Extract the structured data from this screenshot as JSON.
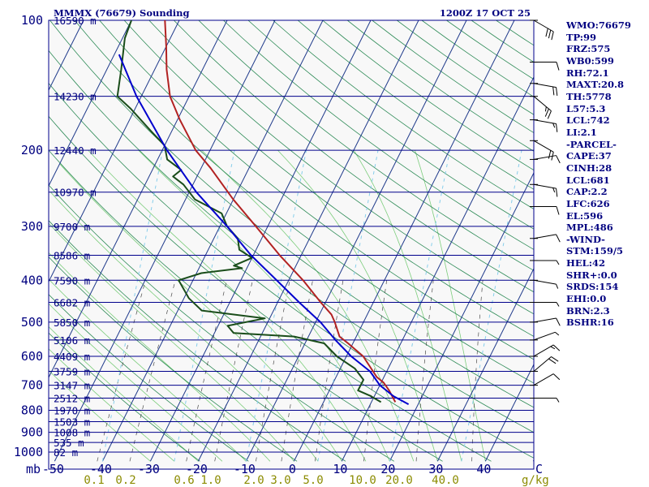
{
  "header": {
    "title": "MMMX (76679) Sounding",
    "datetime": "1200Z 17 OCT 25"
  },
  "colors": {
    "background": "#f8f8f8",
    "isobar": "#00008b",
    "dry_adiabat": "#2e8b57",
    "moist_adiabat": "#7ccd7c",
    "mixing_ratio": "#4a4a4a",
    "isotherm": "#1e3a8a",
    "temperature": "#b22222",
    "dewpoint": "#1a4d1a",
    "parcel": "#0000cd",
    "wet_bulb_line": "#87ceeb",
    "temp_ticks": "#000080",
    "mixing_ratio_ticks": "#8b8b00",
    "stats_text": "#000080"
  },
  "stats": [
    "WMO:76679",
    "TP:99",
    "FRZ:575",
    "WB0:599",
    "RH:72.1",
    "MAXT:20.8",
    "TH:5778",
    "L57:5.3",
    "LCL:742",
    "LI:2.1",
    "-PARCEL-",
    "CAPE:37",
    "CINH:28",
    "LCL:681",
    "CAP:2.2",
    "LFC:626",
    "EL:596",
    "MPL:486",
    "-WIND-",
    "STM:159/5",
    "HEL:42",
    "SHR+:0.0",
    "SRDS:154",
    "EHI:0.0",
    "BRN:2.3",
    "BSHR:16"
  ],
  "chart_data": {
    "type": "line",
    "diagram": "skew-T log-P",
    "pressure_unit": "mb",
    "x_unit": "C",
    "x_ticks": [
      -50,
      -40,
      -30,
      -20,
      -10,
      0,
      10,
      20,
      30,
      40
    ],
    "x_tick_labels": [
      "-50",
      "-40",
      "-30",
      "-20",
      "-10",
      "0",
      "10",
      "20",
      "30",
      "40"
    ],
    "x_axis_label": "C",
    "mixing_ratio_ticks": [
      "0.1",
      "0.2",
      "0.6",
      "1.0",
      "2.0",
      "3.0",
      "5.0",
      "10.0",
      "20.0",
      "40.0"
    ],
    "mixing_ratio_unit": "g/kg",
    "axis_unit_label": "mb",
    "pressure_tick_labels": [
      {
        "p": 100,
        "label": "100"
      },
      {
        "p": 200,
        "label": "200"
      },
      {
        "p": 300,
        "label": "300"
      },
      {
        "p": 400,
        "label": "400"
      },
      {
        "p": 500,
        "label": "500"
      },
      {
        "p": 600,
        "label": "600"
      },
      {
        "p": 700,
        "label": "700"
      },
      {
        "p": 800,
        "label": "800"
      },
      {
        "p": 900,
        "label": "900"
      },
      {
        "p": 1000,
        "label": "1000"
      }
    ],
    "height_labels": [
      {
        "p": 100,
        "label": "16590 m"
      },
      {
        "p": 150,
        "label": "14230 m"
      },
      {
        "p": 200,
        "label": "12440 m"
      },
      {
        "p": 250,
        "label": "10970 m"
      },
      {
        "p": 300,
        "label": "9700 m"
      },
      {
        "p": 350,
        "label": "8586 m"
      },
      {
        "p": 400,
        "label": "7590 m"
      },
      {
        "p": 450,
        "label": "6682 m"
      },
      {
        "p": 500,
        "label": "5850 m"
      },
      {
        "p": 550,
        "label": "5106 m"
      },
      {
        "p": 600,
        "label": "4409 m"
      },
      {
        "p": 650,
        "label": "3759 m"
      },
      {
        "p": 700,
        "label": "3147 m"
      },
      {
        "p": 750,
        "label": "2512 m"
      },
      {
        "p": 800,
        "label": "1970 m"
      },
      {
        "p": 850,
        "label": "1503 m"
      },
      {
        "p": 900,
        "label": "1008 m"
      },
      {
        "p": 950,
        "label": "535 m"
      },
      {
        "p": 1000,
        "label": "82 m"
      }
    ],
    "series": [
      {
        "key": "temperature",
        "points": [
          {
            "p": 766,
            "t": 15.0
          },
          {
            "p": 720,
            "t": 12.5
          },
          {
            "p": 690,
            "t": 10.5
          },
          {
            "p": 670,
            "t": 8.5
          },
          {
            "p": 600,
            "t": 3.5
          },
          {
            "p": 560,
            "t": -1.0
          },
          {
            "p": 540,
            "t": -3.5
          },
          {
            "p": 500,
            "t": -6.0
          },
          {
            "p": 480,
            "t": -7.5
          },
          {
            "p": 450,
            "t": -11.0
          },
          {
            "p": 400,
            "t": -17.0
          },
          {
            "p": 350,
            "t": -24.5
          },
          {
            "p": 300,
            "t": -32.5
          },
          {
            "p": 260,
            "t": -40.0
          },
          {
            "p": 220,
            "t": -48.0
          },
          {
            "p": 200,
            "t": -53.0
          },
          {
            "p": 170,
            "t": -59.5
          },
          {
            "p": 150,
            "t": -64.0
          },
          {
            "p": 130,
            "t": -67.5
          },
          {
            "p": 115,
            "t": -70.0
          },
          {
            "p": 100,
            "t": -73.0
          }
        ]
      },
      {
        "key": "dewpoint",
        "points": [
          {
            "p": 766,
            "t": 12.0
          },
          {
            "p": 740,
            "t": 9.0
          },
          {
            "p": 720,
            "t": 6.0
          },
          {
            "p": 700,
            "t": 6.0
          },
          {
            "p": 680,
            "t": 6.0
          },
          {
            "p": 640,
            "t": 3.0
          },
          {
            "p": 600,
            "t": -2.0
          },
          {
            "p": 560,
            "t": -6.0
          },
          {
            "p": 540,
            "t": -13.0
          },
          {
            "p": 530,
            "t": -26.0
          },
          {
            "p": 510,
            "t": -28.0
          },
          {
            "p": 490,
            "t": -21.0
          },
          {
            "p": 470,
            "t": -35.0
          },
          {
            "p": 440,
            "t": -39.0
          },
          {
            "p": 400,
            "t": -43.0
          },
          {
            "p": 385,
            "t": -39.0
          },
          {
            "p": 375,
            "t": -31.0
          },
          {
            "p": 370,
            "t": -33.0
          },
          {
            "p": 355,
            "t": -30.0
          },
          {
            "p": 340,
            "t": -33.5
          },
          {
            "p": 320,
            "t": -35.0
          },
          {
            "p": 300,
            "t": -38.5
          },
          {
            "p": 280,
            "t": -41.0
          },
          {
            "p": 260,
            "t": -48.0
          },
          {
            "p": 240,
            "t": -52.0
          },
          {
            "p": 230,
            "t": -55.0
          },
          {
            "p": 222,
            "t": -54.0
          },
          {
            "p": 210,
            "t": -58.0
          },
          {
            "p": 195,
            "t": -60.0
          },
          {
            "p": 180,
            "t": -64.5
          },
          {
            "p": 160,
            "t": -71.0
          },
          {
            "p": 150,
            "t": -75.0
          },
          {
            "p": 130,
            "t": -77.0
          },
          {
            "p": 110,
            "t": -79.5
          },
          {
            "p": 100,
            "t": -80.0
          }
        ]
      },
      {
        "key": "parcel",
        "points": [
          {
            "p": 775,
            "t": 18.0
          },
          {
            "p": 742,
            "t": 14.0
          },
          {
            "p": 700,
            "t": 10.0
          },
          {
            "p": 650,
            "t": 6.5
          },
          {
            "p": 600,
            "t": 1.0
          },
          {
            "p": 550,
            "t": -4.0
          },
          {
            "p": 500,
            "t": -9.0
          },
          {
            "p": 450,
            "t": -15.5
          },
          {
            "p": 400,
            "t": -22.5
          },
          {
            "p": 350,
            "t": -30.5
          },
          {
            "p": 300,
            "t": -38.5
          },
          {
            "p": 250,
            "t": -48.5
          },
          {
            "p": 200,
            "t": -59.0
          },
          {
            "p": 150,
            "t": -71.0
          },
          {
            "p": 120,
            "t": -79.0
          }
        ]
      }
    ],
    "winds": [
      {
        "p": 100,
        "dir": 120,
        "kt": 30
      },
      {
        "p": 125,
        "dir": 90,
        "kt": 10
      },
      {
        "p": 140,
        "dir": 100,
        "kt": 20
      },
      {
        "p": 150,
        "dir": 130,
        "kt": 25
      },
      {
        "p": 170,
        "dir": 100,
        "kt": 15
      },
      {
        "p": 190,
        "dir": 120,
        "kt": 20
      },
      {
        "p": 210,
        "dir": 80,
        "kt": 10
      },
      {
        "p": 240,
        "dir": 100,
        "kt": 15
      },
      {
        "p": 270,
        "dir": 90,
        "kt": 10
      },
      {
        "p": 320,
        "dir": 80,
        "kt": 10
      },
      {
        "p": 360,
        "dir": 90,
        "kt": 5
      },
      {
        "p": 400,
        "dir": 100,
        "kt": 5
      },
      {
        "p": 450,
        "dir": 90,
        "kt": 5
      },
      {
        "p": 500,
        "dir": 80,
        "kt": 10
      },
      {
        "p": 550,
        "dir": 70,
        "kt": 5
      },
      {
        "p": 600,
        "dir": 60,
        "kt": 15
      },
      {
        "p": 650,
        "dir": 50,
        "kt": 20
      },
      {
        "p": 700,
        "dir": 60,
        "kt": 10
      },
      {
        "p": 750,
        "dir": 90,
        "kt": 5
      }
    ]
  }
}
